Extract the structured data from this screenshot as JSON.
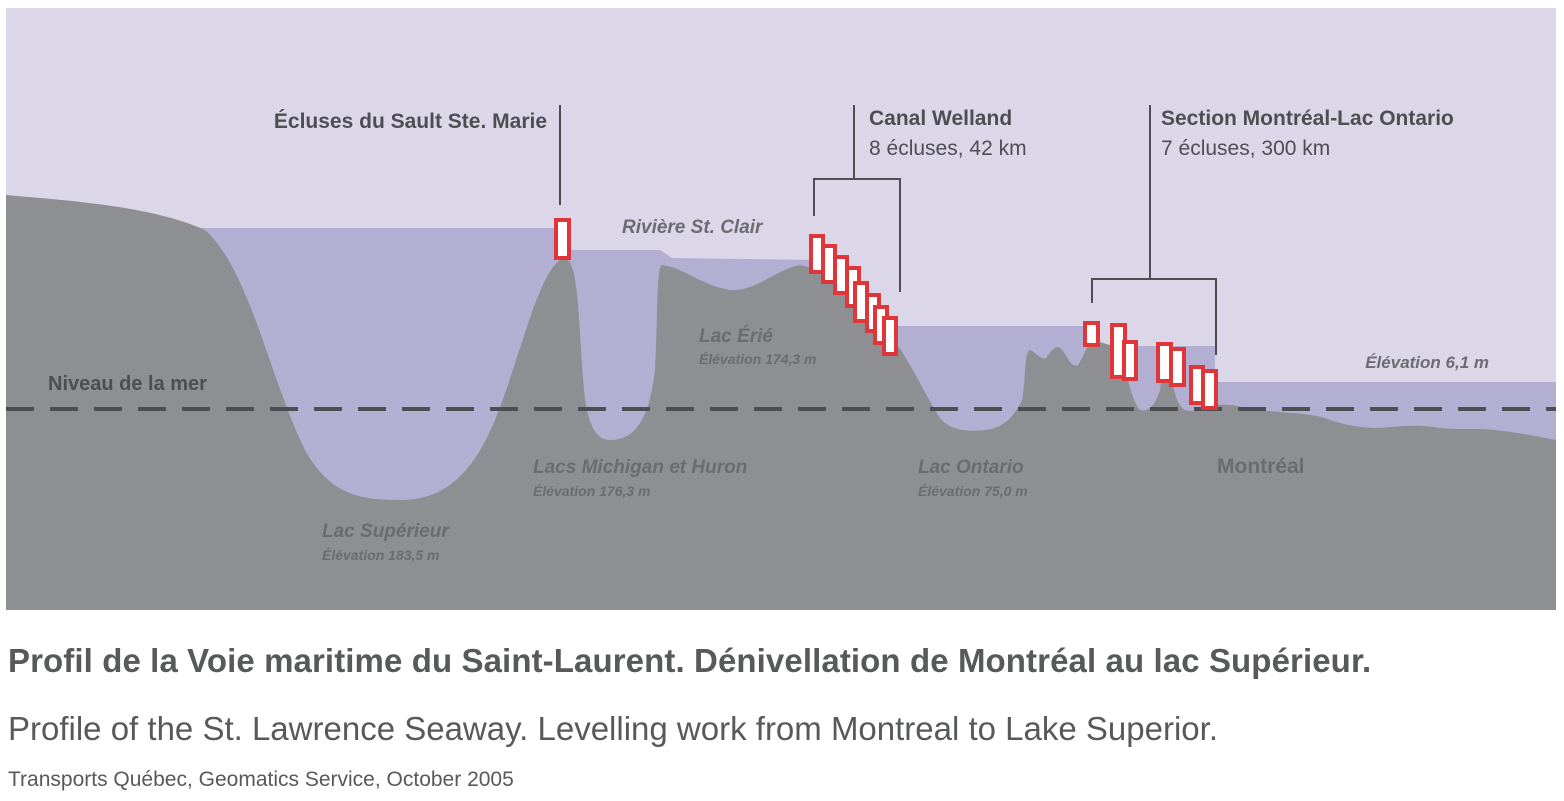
{
  "labels": {
    "sault_locks": "Écluses du Sault Ste. Marie",
    "welland_title": "Canal Welland",
    "welland_detail": "8 écluses, 42 km",
    "montreal_section_title": "Section Montréal-Lac Ontario",
    "montreal_section_detail": "7 écluses, 300 km",
    "st_clair": "Rivière St. Clair",
    "sea_level": "Niveau de la mer",
    "elevation_end": "Élévation 6,1 m",
    "montreal": "Montréal"
  },
  "lakes": [
    {
      "name": "Lac Supérieur",
      "elevation": "Élévation 183,5 m"
    },
    {
      "name": "Lacs Michigan et Huron",
      "elevation": "Élévation 176,3 m"
    },
    {
      "name": "Lac Érié",
      "elevation": "Élévation 174,3 m"
    },
    {
      "name": "Lac Ontario",
      "elevation": "Élévation 75,0 m"
    }
  ],
  "caption": {
    "french": "Profil de la Voie maritime du Saint-Laurent. Dénivellation de Montréal au lac Supérieur.",
    "english": "Profile of the St. Lawrence Seaway. Levelling work from Montreal to Lake Superior.",
    "source": "Transports Québec, Geomatics Service, October 2005"
  },
  "colors": {
    "sky": "#dbd7e8",
    "water": "#b3afd3",
    "land": "#8d8f93",
    "lock_outline": "#e0363a",
    "lock_fill": "#ffffff",
    "text": "#4d4e52",
    "caption_text": "#58595b"
  }
}
